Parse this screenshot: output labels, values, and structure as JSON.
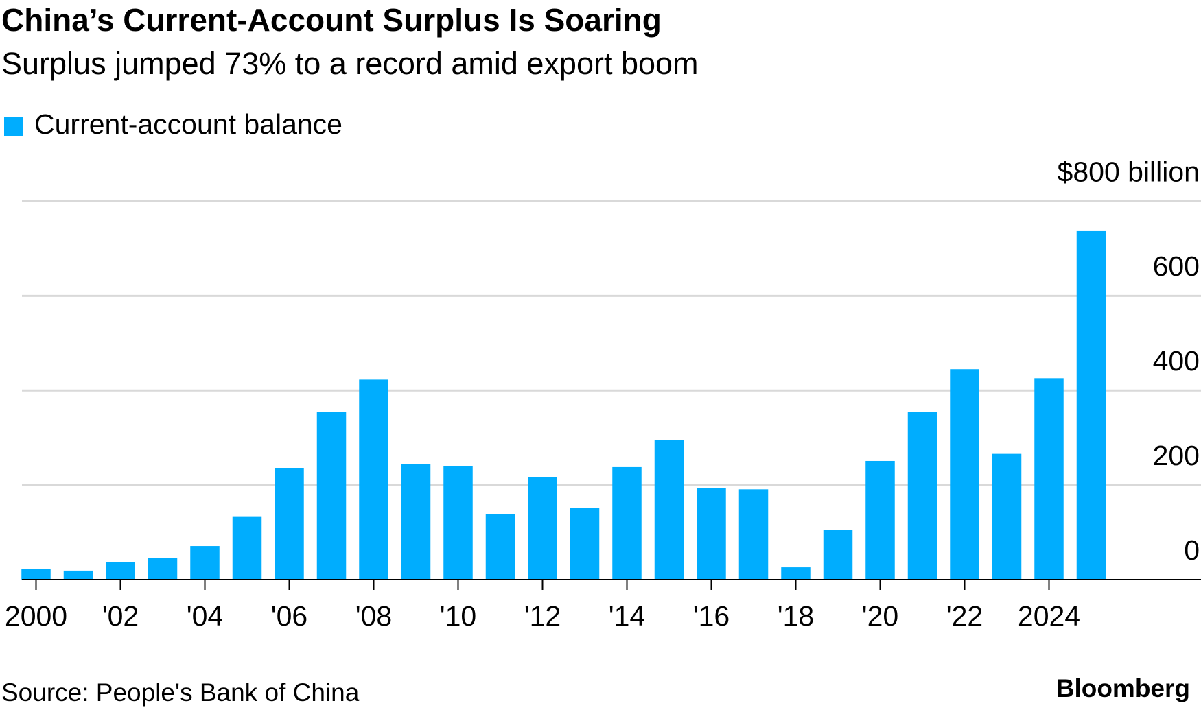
{
  "chart_data": {
    "type": "bar",
    "title": "China’s Current-Account Surplus Is Soaring",
    "subtitle": "Surplus jumped 73% to a record amid export boom",
    "source": "Source: People's Bank of China",
    "brand": "Bloomberg",
    "legend": "top-left",
    "grid": true,
    "series": [
      {
        "name": "Current-account balance",
        "color": "#00adfe",
        "values": [
          23,
          19,
          37,
          45,
          71,
          134,
          235,
          355,
          423,
          245,
          240,
          138,
          217,
          151,
          238,
          295,
          194,
          191,
          26,
          105,
          251,
          355,
          445,
          266,
          426,
          737
        ]
      }
    ],
    "categories": [
      "2000",
      null,
      "'02",
      null,
      "'04",
      null,
      "'06",
      null,
      "'08",
      null,
      "'10",
      null,
      "'12",
      null,
      "'14",
      null,
      "'16",
      null,
      "'18",
      null,
      "'20",
      null,
      "'22",
      null,
      "2024",
      null
    ],
    "ylim": [
      0,
      800
    ],
    "yticks": [
      0,
      200,
      400,
      600,
      {
        "value": 800,
        "label": "$800 billion"
      }
    ]
  }
}
